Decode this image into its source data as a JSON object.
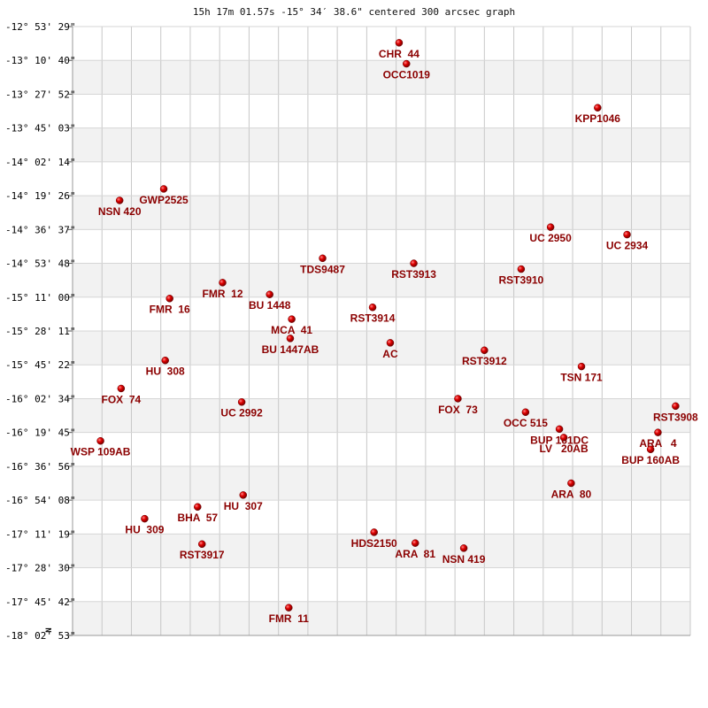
{
  "chart_data": {
    "type": "scatter",
    "title": "15h 17m 01.57s -15° 34′ 38.6\" centered 300 arcsec graph",
    "compass_label": "N",
    "y_tick_labels": [
      "-12° 53' 29\"",
      "-13° 10' 40\"",
      "-13° 27' 52\"",
      "-13° 45' 03\"",
      "-14° 02' 14\"",
      "-14° 19' 26\"",
      "-14° 36' 37\"",
      "-14° 53' 48\"",
      "-15° 11' 00\"",
      "-15° 28' 11\"",
      "-15° 45' 22\"",
      "-16° 02' 34\"",
      "-16° 19' 45\"",
      "-16° 36' 56\"",
      "-16° 54' 08\"",
      "-17° 11' 19\"",
      "-17° 28' 30\"",
      "-17° 45' 42\"",
      "-18° 02' 53\""
    ],
    "x_divisions": 21,
    "y_divisions": 18,
    "xlim": [
      0,
      21
    ],
    "ylim": [
      0,
      18
    ],
    "marker_color": "#cc0000",
    "label_color": "#8b0000",
    "stars": [
      {
        "name": "CHR  44",
        "x": 11.1,
        "y": 0.48,
        "label_dy": 0.43
      },
      {
        "name": "OCC1019",
        "x": 11.35,
        "y": 1.1,
        "label_dy": 0.43
      },
      {
        "name": "KPP1046",
        "x": 17.85,
        "y": 2.4,
        "label_dy": 0.43
      },
      {
        "name": "GWP2525",
        "x": 3.1,
        "y": 4.8,
        "label_dy": 0.43
      },
      {
        "name": "NSN 420",
        "x": 1.6,
        "y": 5.14,
        "label_dy": 0.43
      },
      {
        "name": "UC 2950",
        "x": 16.25,
        "y": 5.93,
        "label_dy": 0.43
      },
      {
        "name": "UC 2934",
        "x": 18.85,
        "y": 6.15,
        "label_dy": 0.43
      },
      {
        "name": "TDS9487",
        "x": 8.5,
        "y": 6.85,
        "label_dy": 0.43
      },
      {
        "name": "RST3913",
        "x": 11.6,
        "y": 7.0,
        "label_dy": 0.43
      },
      {
        "name": "RST3910",
        "x": 15.25,
        "y": 7.17,
        "label_dy": 0.43
      },
      {
        "name": "FMR  12",
        "x": 5.1,
        "y": 7.57,
        "label_dy": 0.43
      },
      {
        "name": "BU 1448",
        "x": 6.7,
        "y": 7.92,
        "label_dy": 0.43
      },
      {
        "name": "FMR  16",
        "x": 3.3,
        "y": 8.04,
        "label_dy": 0.43
      },
      {
        "name": "RST3914",
        "x": 10.2,
        "y": 8.3,
        "label_dy": 0.43
      },
      {
        "name": "MCA  41",
        "x": 7.45,
        "y": 8.65,
        "label_dy": 0.43
      },
      {
        "name": "BU 1447AB",
        "x": 7.4,
        "y": 9.22,
        "label_dy": 0.43
      },
      {
        "name": "AC",
        "x": 10.8,
        "y": 9.35,
        "label_dy": 0.43
      },
      {
        "name": "RST3912",
        "x": 14.0,
        "y": 9.57,
        "label_dy": 0.43
      },
      {
        "name": "HU  308",
        "x": 3.15,
        "y": 9.87,
        "label_dy": 0.43
      },
      {
        "name": "TSN 171",
        "x": 17.3,
        "y": 10.05,
        "label_dy": 0.43
      },
      {
        "name": "FOX  74",
        "x": 1.65,
        "y": 10.7,
        "label_dy": 0.43
      },
      {
        "name": "FOX  73",
        "x": 13.1,
        "y": 11.0,
        "label_dy": 0.43
      },
      {
        "name": "UC 2992",
        "x": 5.75,
        "y": 11.1,
        "label_dy": 0.43
      },
      {
        "name": "RST3908",
        "x": 20.5,
        "y": 11.22,
        "label_dy": 0.43
      },
      {
        "name": "OCC 515",
        "x": 15.4,
        "y": 11.4,
        "label_dy": 0.43
      },
      {
        "name": "BUP 161DC",
        "x": 16.55,
        "y": 11.9,
        "label_dy": 0.43
      },
      {
        "name": "ARA   4",
        "x": 19.9,
        "y": 12.0,
        "label_dy": 0.43
      },
      {
        "name": "WSP 109AB",
        "x": 0.95,
        "y": 12.25,
        "label_dy": 0.43
      },
      {
        "name": "LV   20AB",
        "x": 16.7,
        "y": 12.15,
        "label_dy": 0.43
      },
      {
        "name": "BUP 160AB",
        "x": 19.65,
        "y": 12.5,
        "label_dy": 0.43
      },
      {
        "name": "ARA  80",
        "x": 16.95,
        "y": 13.5,
        "label_dy": 0.43
      },
      {
        "name": "HU  307",
        "x": 5.8,
        "y": 13.85,
        "label_dy": 0.43
      },
      {
        "name": "BHA  57",
        "x": 4.25,
        "y": 14.2,
        "label_dy": 0.43
      },
      {
        "name": "HU  309",
        "x": 2.45,
        "y": 14.55,
        "label_dy": 0.43
      },
      {
        "name": "HDS2150",
        "x": 10.25,
        "y": 14.95,
        "label_dy": 0.43
      },
      {
        "name": "RST3917",
        "x": 4.4,
        "y": 15.3,
        "label_dy": 0.43
      },
      {
        "name": "ARA  81",
        "x": 11.65,
        "y": 15.27,
        "label_dy": 0.43
      },
      {
        "name": "NSN 419",
        "x": 13.3,
        "y": 15.42,
        "label_dy": 0.43
      },
      {
        "name": "FMR  11",
        "x": 7.35,
        "y": 17.18,
        "label_dy": 0.43
      }
    ]
  }
}
